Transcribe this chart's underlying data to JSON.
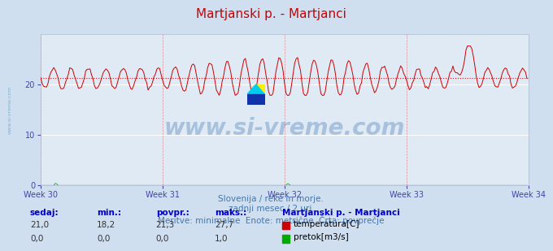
{
  "title": "Martjanski p. - Martjanci",
  "title_color": "#cc0000",
  "bg_color": "#d0dff0",
  "plot_bg_color": "#e0eaf5",
  "grid_color_h": "#ffffff",
  "grid_color_v": "#dd6666",
  "xlabel_weeks": [
    "Week 30",
    "Week 31",
    "Week 32",
    "Week 33",
    "Week 34"
  ],
  "ylabel_ticks": [
    0,
    10,
    20
  ],
  "ylim": [
    0,
    30
  ],
  "avg_temp": 21.3,
  "min_temp": 18.2,
  "max_temp": 27.7,
  "temp_line_color": "#cc0000",
  "flow_line_color": "#00aa00",
  "avg_line_color": "#cc0000",
  "watermark_text": "www.si-vreme.com",
  "watermark_color": "#5588bb",
  "watermark_alpha": 0.4,
  "subtitle1": "Slovenija / reke in morje.",
  "subtitle2": "zadnji mesec / 2 uri.",
  "subtitle3": "Meritve: minimalne  Enote: metrične  Črta: povprečje",
  "subtitle_color": "#4477aa",
  "legend_title": "Martjanski p. - Martjanci",
  "legend_title_color": "#0000cc",
  "table_headers": [
    "sedaj:",
    "min.:",
    "povpr.:",
    "maks.:"
  ],
  "table_header_color": "#0000cc",
  "table_values_temp": [
    "21,0",
    "18,2",
    "21,3",
    "27,7"
  ],
  "table_values_flow": [
    "0,0",
    "0,0",
    "0,0",
    "1,0"
  ],
  "table_value_color": "#333333",
  "label_temp": "temperatura[C]",
  "label_flow": "pretok[m3/s]",
  "temp_legend_color": "#cc0000",
  "flow_legend_color": "#00aa00",
  "n_points": 336,
  "ylabel_color": "#4444aa",
  "tick_color": "#4444aa",
  "left_label": "www.si-vreme.com"
}
